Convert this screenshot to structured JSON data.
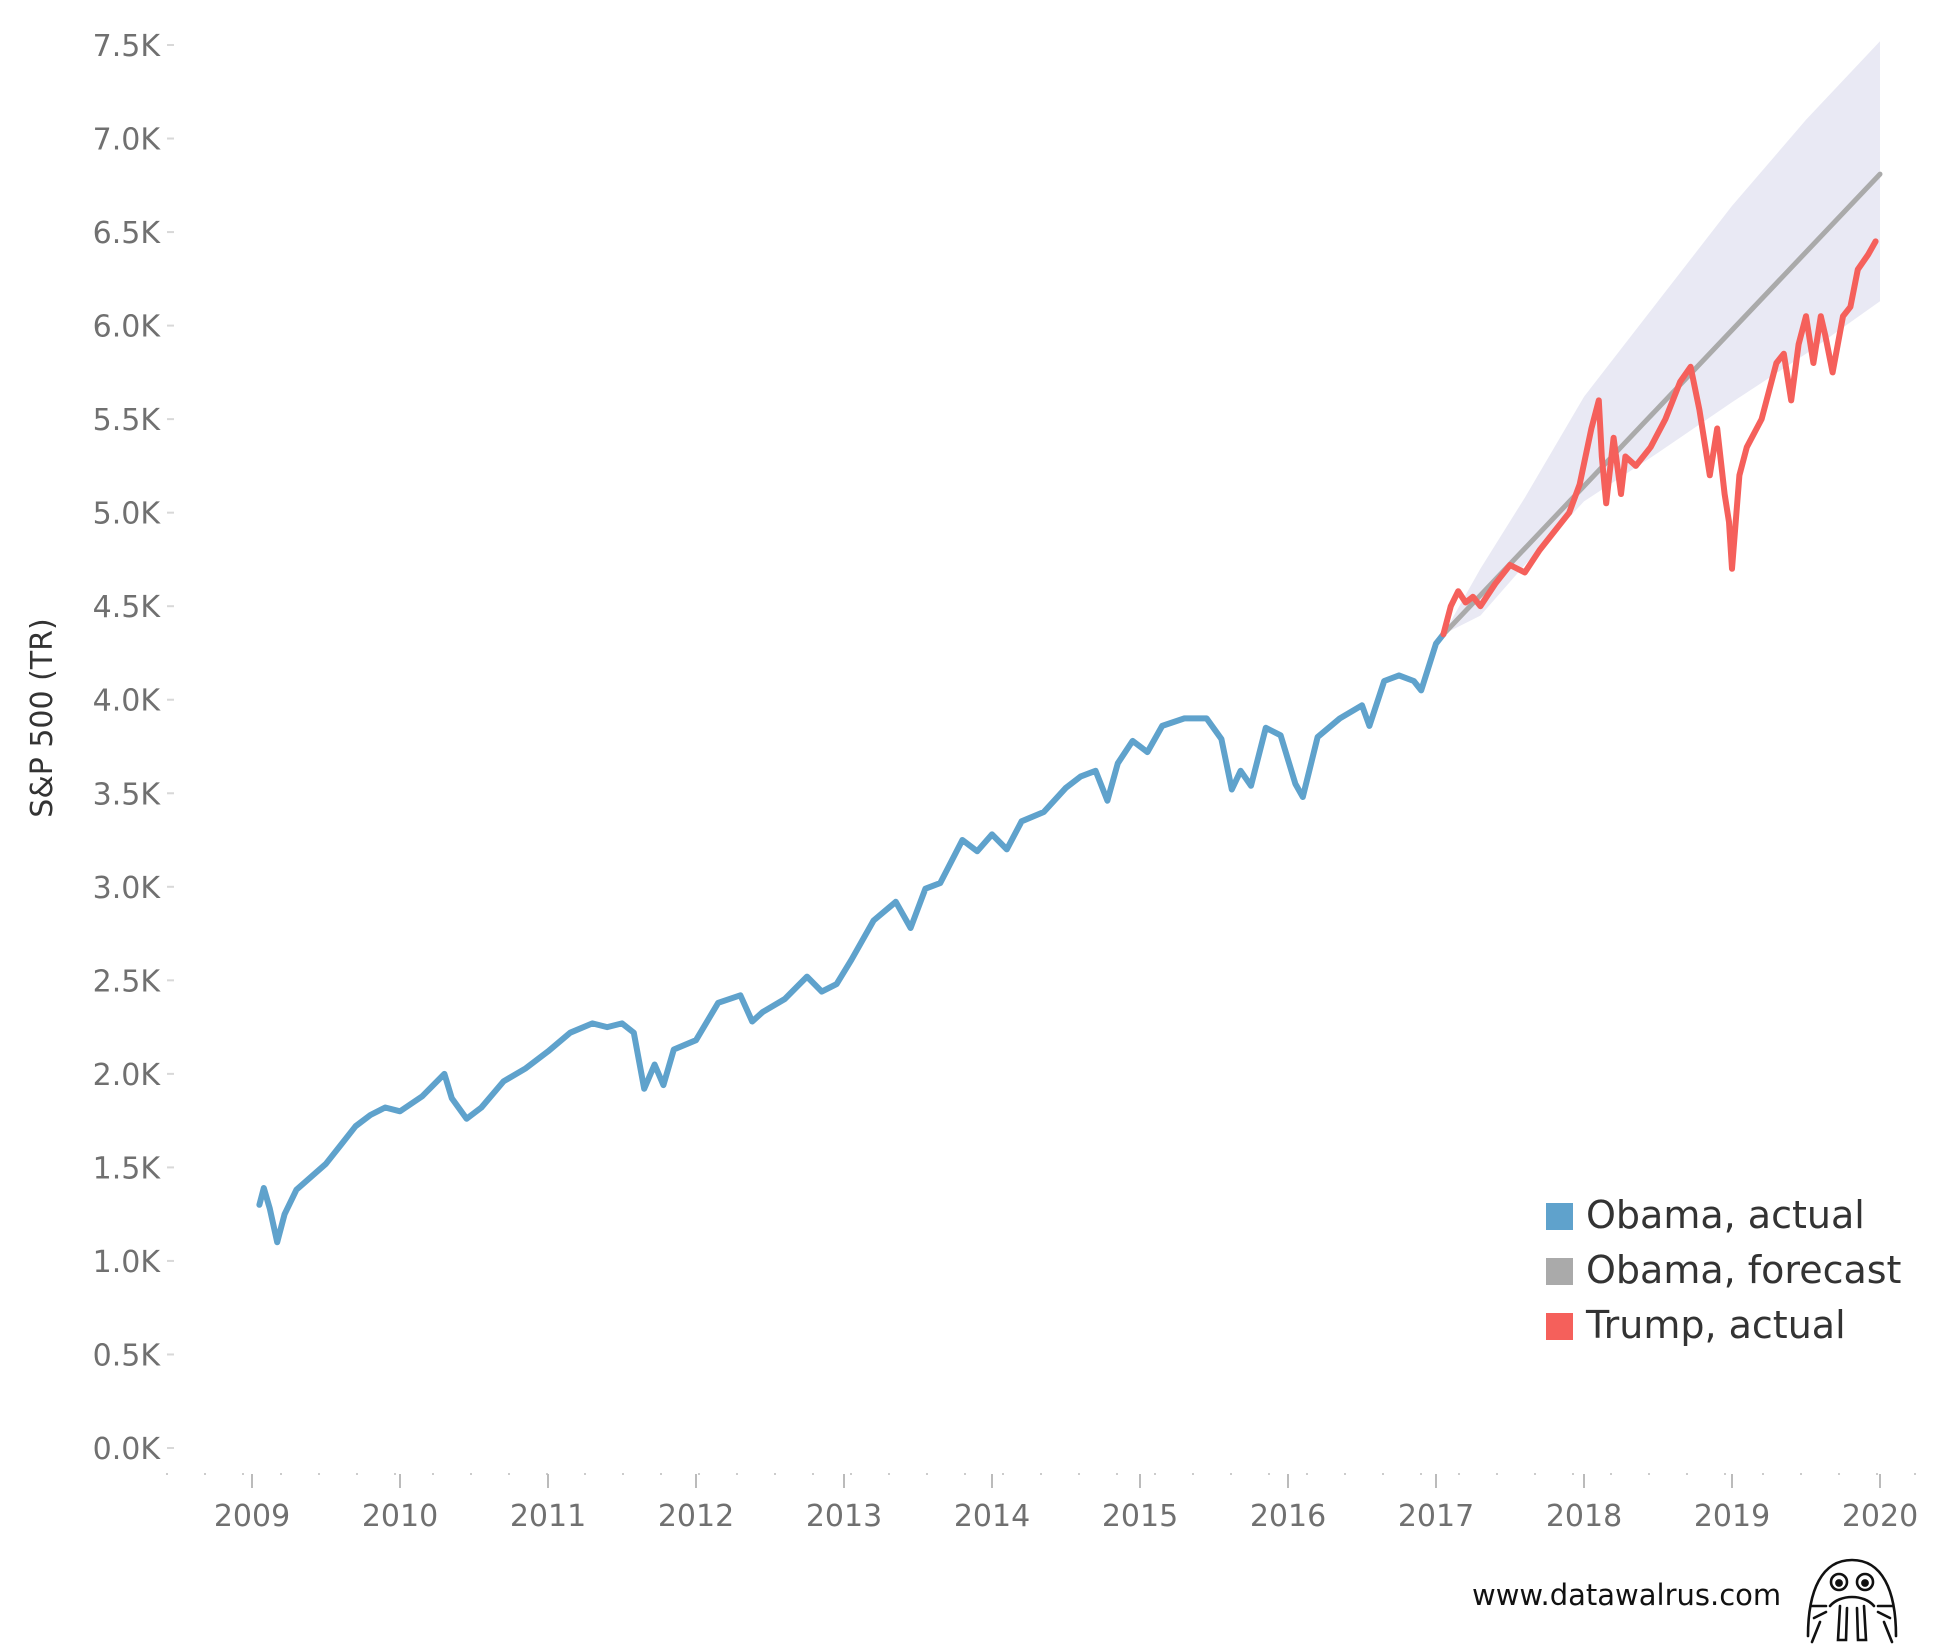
{
  "chart_data": {
    "type": "line",
    "ylabel": "S&P 500 (TR)",
    "xlabel": "",
    "xlim": [
      2009.0,
      2020.0
    ],
    "ylim": [
      0,
      7500
    ],
    "x_ticks": [
      {
        "value": 2009,
        "label": "2009"
      },
      {
        "value": 2010,
        "label": "2010"
      },
      {
        "value": 2011,
        "label": "2011"
      },
      {
        "value": 2012,
        "label": "2012"
      },
      {
        "value": 2013,
        "label": "2013"
      },
      {
        "value": 2014,
        "label": "2014"
      },
      {
        "value": 2015,
        "label": "2015"
      },
      {
        "value": 2016,
        "label": "2016"
      },
      {
        "value": 2017,
        "label": "2017"
      },
      {
        "value": 2018,
        "label": "2018"
      },
      {
        "value": 2019,
        "label": "2019"
      },
      {
        "value": 2020,
        "label": "2020"
      }
    ],
    "y_ticks": [
      {
        "value": 0,
        "label": "0.0K"
      },
      {
        "value": 500,
        "label": "0.5K"
      },
      {
        "value": 1000,
        "label": "1.0K"
      },
      {
        "value": 1500,
        "label": "1.5K"
      },
      {
        "value": 2000,
        "label": "2.0K"
      },
      {
        "value": 2500,
        "label": "2.5K"
      },
      {
        "value": 3000,
        "label": "3.0K"
      },
      {
        "value": 3500,
        "label": "3.5K"
      },
      {
        "value": 4000,
        "label": "4.0K"
      },
      {
        "value": 4500,
        "label": "4.5K"
      },
      {
        "value": 5000,
        "label": "5.0K"
      },
      {
        "value": 5500,
        "label": "5.5K"
      },
      {
        "value": 6000,
        "label": "6.0K"
      },
      {
        "value": 6500,
        "label": "6.5K"
      },
      {
        "value": 7000,
        "label": "7.0K"
      },
      {
        "value": 7500,
        "label": "7.5K"
      }
    ],
    "legend_position": "bottom-right",
    "grid": false,
    "series": [
      {
        "name": "Obama, actual",
        "color": "#5fa2cc",
        "x": [
          2009.05,
          2009.08,
          2009.12,
          2009.17,
          2009.22,
          2009.3,
          2009.4,
          2009.5,
          2009.6,
          2009.7,
          2009.8,
          2009.9,
          2010.0,
          2010.15,
          2010.3,
          2010.35,
          2010.45,
          2010.55,
          2010.7,
          2010.85,
          2011.0,
          2011.15,
          2011.3,
          2011.4,
          2011.5,
          2011.58,
          2011.65,
          2011.72,
          2011.78,
          2011.85,
          2012.0,
          2012.15,
          2012.3,
          2012.38,
          2012.45,
          2012.6,
          2012.75,
          2012.85,
          2012.95,
          2013.05,
          2013.2,
          2013.35,
          2013.45,
          2013.55,
          2013.65,
          2013.8,
          2013.9,
          2014.0,
          2014.1,
          2014.2,
          2014.35,
          2014.5,
          2014.6,
          2014.7,
          2014.78,
          2014.85,
          2014.95,
          2015.05,
          2015.15,
          2015.3,
          2015.45,
          2015.55,
          2015.62,
          2015.68,
          2015.75,
          2015.85,
          2015.95,
          2016.05,
          2016.1,
          2016.2,
          2016.35,
          2016.5,
          2016.55,
          2016.65,
          2016.75,
          2016.85,
          2016.9,
          2017.0,
          2017.05
        ],
        "values": [
          1300,
          1390,
          1280,
          1100,
          1250,
          1380,
          1450,
          1520,
          1620,
          1720,
          1780,
          1820,
          1800,
          1880,
          2000,
          1870,
          1760,
          1820,
          1960,
          2030,
          2120,
          2220,
          2270,
          2250,
          2270,
          2220,
          1920,
          2050,
          1940,
          2130,
          2180,
          2380,
          2420,
          2280,
          2330,
          2400,
          2520,
          2440,
          2480,
          2610,
          2820,
          2920,
          2780,
          2990,
          3020,
          3250,
          3190,
          3280,
          3200,
          3350,
          3400,
          3530,
          3590,
          3620,
          3460,
          3660,
          3780,
          3720,
          3860,
          3900,
          3900,
          3790,
          3520,
          3620,
          3540,
          3850,
          3810,
          3550,
          3480,
          3800,
          3900,
          3970,
          3860,
          4100,
          4130,
          4100,
          4050,
          4300,
          4350
        ]
      },
      {
        "name": "Obama, forecast",
        "color": "#aaaaaa",
        "x": [
          2017.05,
          2020.0
        ],
        "values": [
          4350,
          6810
        ],
        "band_color": "#e9e9f4",
        "band": {
          "x": [
            2017.05,
            2017.3,
            2017.6,
            2018.0,
            2018.5,
            2019.0,
            2019.5,
            2020.0
          ],
          "upper": [
            4350,
            4700,
            5080,
            5620,
            6130,
            6640,
            7100,
            7520
          ],
          "lower": [
            4350,
            4450,
            4720,
            5060,
            5320,
            5590,
            5850,
            6130
          ]
        }
      },
      {
        "name": "Trump, actual",
        "color": "#f5605b",
        "x": [
          2017.05,
          2017.1,
          2017.15,
          2017.2,
          2017.25,
          2017.3,
          2017.4,
          2017.5,
          2017.6,
          2017.7,
          2017.8,
          2017.9,
          2017.97,
          2018.05,
          2018.1,
          2018.12,
          2018.15,
          2018.2,
          2018.25,
          2018.28,
          2018.35,
          2018.45,
          2018.55,
          2018.65,
          2018.72,
          2018.78,
          2018.85,
          2018.9,
          2018.95,
          2018.98,
          2019.0,
          2019.05,
          2019.1,
          2019.2,
          2019.3,
          2019.35,
          2019.4,
          2019.45,
          2019.5,
          2019.55,
          2019.6,
          2019.63,
          2019.68,
          2019.75,
          2019.8,
          2019.85,
          2019.92,
          2019.97
        ],
        "values": [
          4350,
          4500,
          4580,
          4520,
          4550,
          4500,
          4620,
          4720,
          4680,
          4800,
          4900,
          5000,
          5150,
          5450,
          5600,
          5300,
          5050,
          5400,
          5100,
          5300,
          5250,
          5350,
          5500,
          5700,
          5780,
          5550,
          5200,
          5450,
          5100,
          4950,
          4700,
          5200,
          5350,
          5500,
          5800,
          5850,
          5600,
          5900,
          6050,
          5800,
          6050,
          5950,
          5750,
          6050,
          6100,
          6300,
          6380,
          6450
        ]
      }
    ]
  },
  "watermark": {
    "text": "www.datawalrus.com",
    "icon": "walrus-icon"
  }
}
